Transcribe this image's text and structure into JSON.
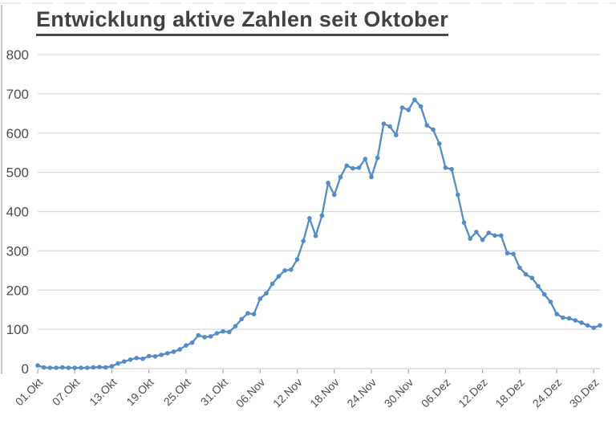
{
  "title": {
    "text": "Entwicklung aktive Zahlen seit Oktober"
  },
  "colors": {
    "series_blue": "#538CC6",
    "gridline": "#d9d9d9",
    "axis_line": "#cfcfcf",
    "tick_mark": "#ababab",
    "label_gray": "#4d4d4d",
    "title_gray": "#424242"
  },
  "chart_data": {
    "type": "line",
    "title": "Entwicklung aktive Zahlen seit Oktober",
    "legend": "none",
    "grid": "horizontal",
    "marker": "circle",
    "x_unit": "day",
    "n_points": 92,
    "points_per_tick": 6,
    "x_tick_labels": [
      "01.Okt",
      "07.Okt",
      "13.Okt",
      "19.Okt",
      "25.Okt",
      "31.Okt",
      "06.Nov",
      "12.Nov",
      "18.Nov",
      "24.Nov",
      "30.Nov",
      "06.Dez",
      "12.Dez",
      "18.Dez",
      "24.Dez",
      "30.Dez"
    ],
    "y_ticks": [
      0,
      100,
      200,
      300,
      400,
      500,
      600,
      700,
      800
    ],
    "ylim": [
      0,
      800
    ],
    "values": [
      8,
      3,
      2,
      2,
      3,
      2,
      2,
      2,
      2,
      3,
      4,
      3,
      6,
      13,
      18,
      23,
      27,
      25,
      32,
      31,
      35,
      39,
      43,
      49,
      59,
      66,
      85,
      80,
      82,
      90,
      95,
      93,
      108,
      126,
      141,
      139,
      178,
      192,
      216,
      235,
      250,
      252,
      278,
      325,
      383,
      338,
      390,
      473,
      443,
      488,
      517,
      510,
      512,
      534,
      488,
      537,
      624,
      617,
      595,
      665,
      659,
      685,
      668,
      620,
      609,
      573,
      512,
      508,
      443,
      372,
      331,
      348,
      328,
      346,
      339,
      339,
      294,
      292,
      257,
      240,
      231,
      210,
      189,
      170,
      139,
      130,
      128,
      123,
      117,
      110,
      104,
      110
    ]
  }
}
